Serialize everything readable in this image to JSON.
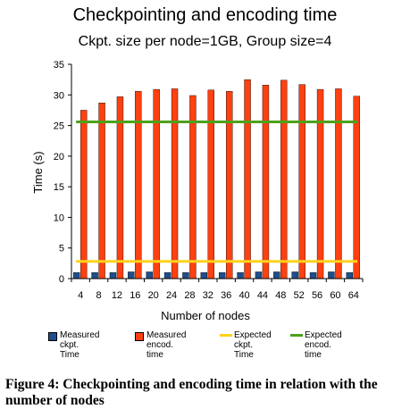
{
  "chart_data": {
    "type": "bar",
    "title": "Checkpointing and encoding time",
    "subtitle": "Ckpt. size per node=1GB, Group size=4",
    "xlabel": "Number of nodes",
    "ylabel": "Time (s)",
    "ylim": [
      0,
      35
    ],
    "yticks": [
      "0",
      "5",
      "10",
      "15",
      "20",
      "25",
      "30",
      "35"
    ],
    "grid": false,
    "legend_position": "bottom",
    "categories": [
      "4",
      "8",
      "12",
      "16",
      "20",
      "24",
      "28",
      "32",
      "36",
      "40",
      "44",
      "48",
      "52",
      "56",
      "60",
      "64"
    ],
    "series": [
      {
        "name": "Measured ckpt. Time",
        "kind": "bar",
        "color": "#1f4e8c",
        "values": [
          1.0,
          1.0,
          1.0,
          1.1,
          1.1,
          1.0,
          1.0,
          1.0,
          1.0,
          1.0,
          1.1,
          1.1,
          1.1,
          1.0,
          1.1,
          1.0
        ]
      },
      {
        "name": "Measured encod. time",
        "kind": "bar",
        "color": "#ff4010",
        "values": [
          27.5,
          28.7,
          29.7,
          30.6,
          30.9,
          31.0,
          29.9,
          30.8,
          30.6,
          32.5,
          31.6,
          32.4,
          31.7,
          30.9,
          31.0,
          29.8
        ]
      },
      {
        "name": "Expected ckpt. Time",
        "kind": "line",
        "color": "#ffd21c",
        "values": [
          2.8,
          2.8,
          2.8,
          2.8,
          2.8,
          2.8,
          2.8,
          2.8,
          2.8,
          2.8,
          2.8,
          2.8,
          2.8,
          2.8,
          2.8,
          2.8
        ]
      },
      {
        "name": "Expected encod. time",
        "kind": "line",
        "color": "#4da11c",
        "values": [
          25.6,
          25.6,
          25.6,
          25.6,
          25.6,
          25.6,
          25.6,
          25.6,
          25.6,
          25.6,
          25.6,
          25.6,
          25.6,
          25.6,
          25.6,
          25.6
        ]
      }
    ]
  },
  "legend": {
    "items": [
      {
        "label": "Measured ckpt.\nTime",
        "color": "#1f4e8c",
        "kind": "box"
      },
      {
        "label": "Measured\nencod. time",
        "color": "#ff4010",
        "kind": "box"
      },
      {
        "label": "Expected ckpt.\nTime",
        "color": "#ffd21c",
        "kind": "line"
      },
      {
        "label": "Expected\nencod. time",
        "color": "#4da11c",
        "kind": "line"
      }
    ]
  },
  "caption": "Figure 4: Checkpointing and encoding time in relation with the number of nodes"
}
